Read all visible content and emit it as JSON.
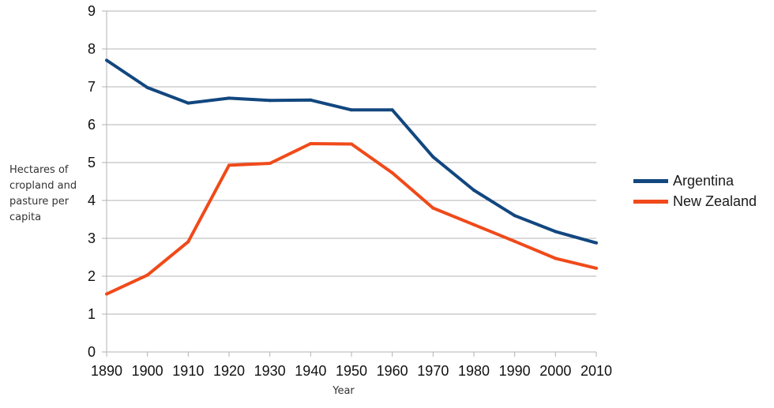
{
  "chart_data": {
    "type": "line",
    "title": "",
    "xlabel": "Year",
    "ylabel_lines": [
      "Hectares of",
      "cropland and",
      "pasture per",
      "capita"
    ],
    "x": [
      1890,
      1900,
      1910,
      1920,
      1930,
      1940,
      1950,
      1960,
      1970,
      1980,
      1990,
      2000,
      2010
    ],
    "xlim": [
      1890,
      2010
    ],
    "ylim": [
      0,
      9
    ],
    "yticks": [
      0,
      1,
      2,
      3,
      4,
      5,
      6,
      7,
      8,
      9
    ],
    "grid": "horizontal",
    "legend_position": "right",
    "series": [
      {
        "name": "Argentina",
        "color": "#12477f",
        "values": [
          7.7,
          6.98,
          6.57,
          6.7,
          6.64,
          6.65,
          6.39,
          6.39,
          5.15,
          4.27,
          3.6,
          3.18,
          2.88
        ]
      },
      {
        "name": "New Zealand",
        "color": "#f04a1a",
        "values": [
          1.53,
          2.03,
          2.91,
          4.93,
          4.98,
          5.5,
          5.49,
          4.73,
          3.8,
          3.36,
          2.92,
          2.47,
          2.21
        ]
      }
    ]
  }
}
